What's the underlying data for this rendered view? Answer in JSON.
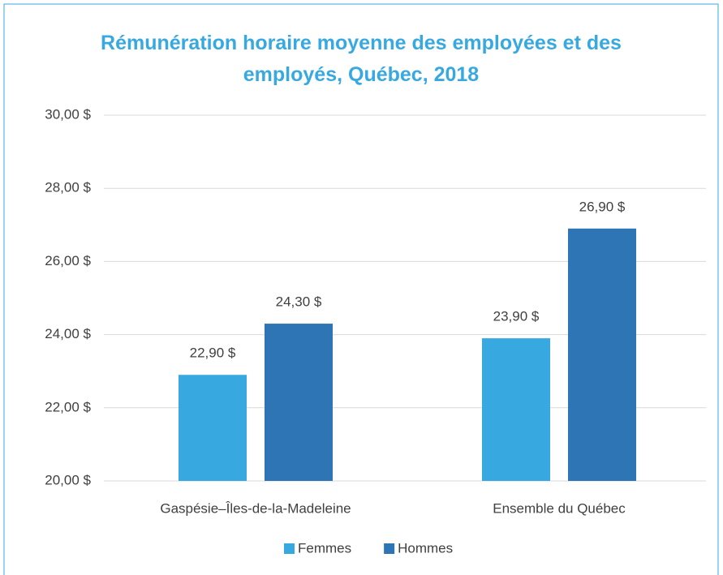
{
  "chart_data": {
    "type": "bar",
    "title": "Rémunération horaire moyenne des employées et des employés, Québec, 2018",
    "categories": [
      "Gaspésie–Îles-de-la-Madeleine",
      "Ensemble du Québec"
    ],
    "series": [
      {
        "name": "Femmes",
        "color": "#38a9e0",
        "values": [
          22.9,
          23.9
        ],
        "value_labels": [
          "22,90 $",
          "23,90 $"
        ]
      },
      {
        "name": "Hommes",
        "color": "#2e75b6",
        "values": [
          24.3,
          26.9
        ],
        "value_labels": [
          "24,30 $",
          "26,90 $"
        ]
      }
    ],
    "ylim": [
      20,
      30
    ],
    "yticks": [
      {
        "value": 20,
        "label": "20,00 $"
      },
      {
        "value": 22,
        "label": "22,00 $"
      },
      {
        "value": 24,
        "label": "24,00 $"
      },
      {
        "value": 26,
        "label": "26,00 $"
      },
      {
        "value": 28,
        "label": "28,00 $"
      },
      {
        "value": 30,
        "label": "30,00 $"
      }
    ],
    "grid": true,
    "legend": "bottom"
  }
}
